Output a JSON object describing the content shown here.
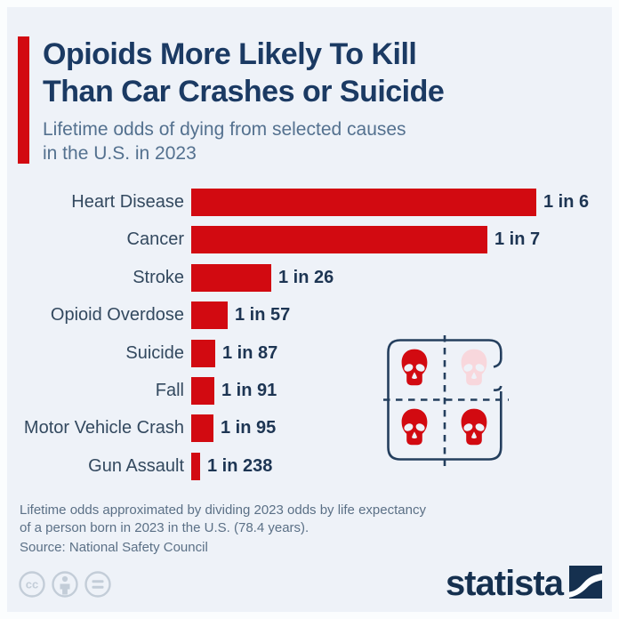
{
  "header": {
    "title_line1": "Opioids More Likely To Kill",
    "title_line2": "Than Car Crashes or Suicide",
    "subtitle_line1": "Lifetime odds of dying from selected causes",
    "subtitle_line2": "in the U.S. in 2023"
  },
  "chart_data": {
    "type": "bar",
    "orientation": "horizontal",
    "title": "Lifetime odds of dying from selected causes in the U.S. in 2023",
    "categories": [
      "Heart Disease",
      "Cancer",
      "Stroke",
      "Opioid Overdose",
      "Suicide",
      "Fall",
      "Motor Vehicle Crash",
      "Gun Assault"
    ],
    "odds_one_in": [
      6,
      7,
      26,
      57,
      87,
      91,
      95,
      238
    ],
    "value_labels": [
      "1 in 6",
      "1 in 7",
      "1 in 26",
      "1 in 57",
      "1 in 87",
      "1 in 91",
      "1 in 95",
      "1 in 238"
    ],
    "bar_scale": "bar length proportional to 1/odds",
    "bar_color": "#d20a11",
    "grid": "off",
    "legend": "none"
  },
  "skull_graphic": {
    "description": "perforated stamp sheet of four skulls, dashed cross divider",
    "skull_colors": [
      "#d20a11",
      "#f8d7dc",
      "#d20a11",
      "#d20a11"
    ],
    "outline_color": "#243f5e"
  },
  "footnote": {
    "line1": "Lifetime odds approximated by dividing 2023 odds by life expectancy",
    "line2": "of a person born in 2023 in the U.S. (78.4 years).",
    "source": "Source: National Safety Council"
  },
  "footer": {
    "license_icons": [
      "cc-icon",
      "attribution-person-icon",
      "equals-icon"
    ],
    "brand": "statista"
  },
  "colors": {
    "background": "#eef2f8",
    "frame": "#fbfdfe",
    "accent_red": "#d20a11",
    "pink": "#f8d7dc",
    "title_navy": "#1b3a63",
    "label_navy": "#33495f",
    "value_navy": "#1d3553",
    "subtitle_blue": "#54718f",
    "footnote_gray": "#5b7086",
    "cc_gray": "#c3cdd8",
    "logo_navy": "#15304f"
  }
}
